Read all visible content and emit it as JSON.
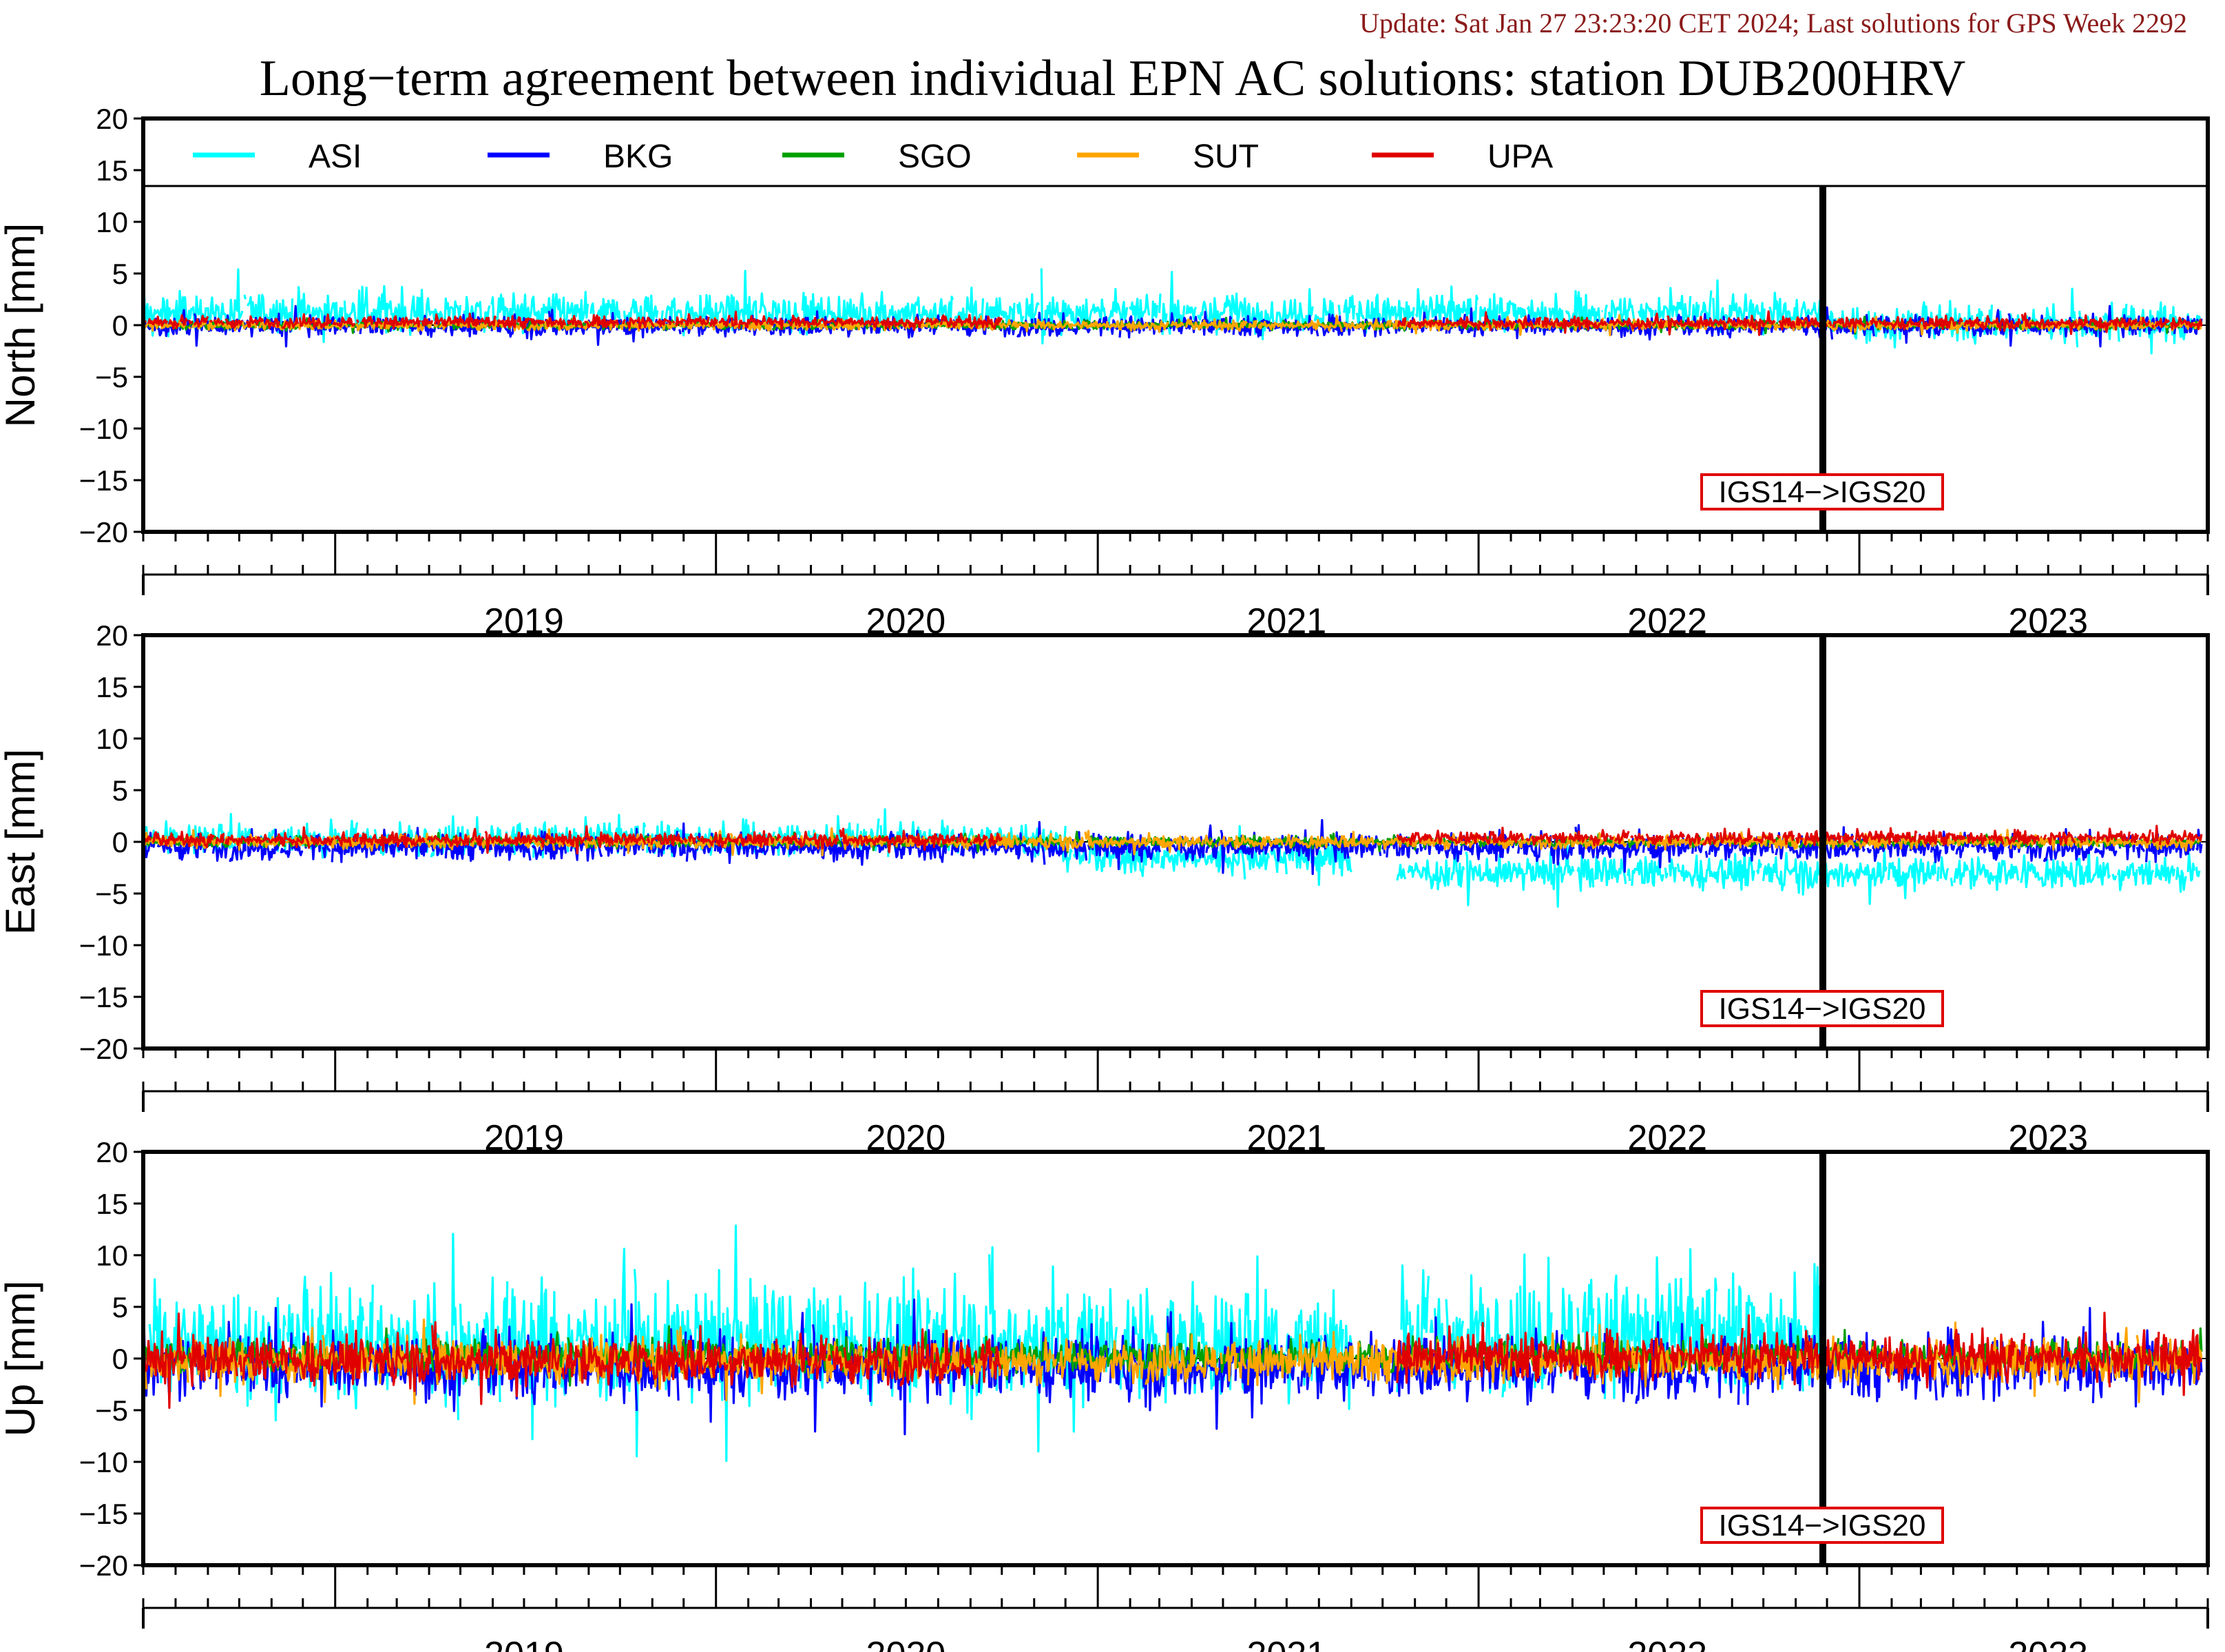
{
  "header": {
    "update_text": "Update: Sat Jan 27 23:23:20 CET 2024; Last solutions for GPS Week 2292",
    "title": "Long−term agreement between individual EPN AC solutions: station DUB200HRV"
  },
  "colors": {
    "update_text": "#8b1a1a",
    "axis": "#000000"
  },
  "chart_data": {
    "type": "line",
    "x_range": [
      "2018-07-01",
      "2023-12-01"
    ],
    "year_labels": [
      "2019",
      "2020",
      "2021",
      "2022",
      "2023"
    ],
    "yticks": [
      "20",
      "15",
      "10",
      "5",
      "0",
      "−5",
      "−10",
      "−15",
      "−20"
    ],
    "ylim": [
      -20,
      20
    ],
    "legend": [
      {
        "name": "ASI",
        "color": "#00ffff"
      },
      {
        "name": "BKG",
        "color": "#0000ff"
      },
      {
        "name": "SGO",
        "color": "#00a000"
      },
      {
        "name": "SUT",
        "color": "#ffa500"
      },
      {
        "name": "UPA",
        "color": "#e00000"
      }
    ],
    "event": {
      "date": "2022-11-27",
      "label": "IGS14−>IGS20",
      "label_color": "#e00000"
    },
    "panels": [
      {
        "ylabel": "North [mm]",
        "series": [
          {
            "name": "ASI",
            "segments": [
              [
                "2018-07-01",
                "2022-11-27",
                1.0
              ],
              [
                "2022-11-27",
                "2023-11-25",
                0.0
              ]
            ],
            "amp": 2.2,
            "pos_bias": 0.2
          },
          {
            "name": "BKG",
            "segments": [
              [
                "2018-07-01",
                "2023-11-25",
                -0.1
              ]
            ],
            "amp": 1.2,
            "pos_bias": 0.0
          },
          {
            "name": "SGO",
            "segments": [
              [
                "2018-07-01",
                "2023-11-25",
                0.0
              ]
            ],
            "amp": 0.5,
            "pos_bias": 0.0
          },
          {
            "name": "SUT",
            "segments": [
              [
                "2018-07-01",
                "2023-11-25",
                0.0
              ]
            ],
            "amp": 0.6,
            "pos_bias": 0.0
          },
          {
            "name": "UPA",
            "segments": [
              [
                "2018-07-01",
                "2020-10-01",
                0.3
              ],
              [
                "2021-10-15",
                "2023-11-25",
                0.2
              ]
            ],
            "amp": 0.7,
            "pos_bias": 0.0
          }
        ]
      },
      {
        "ylabel": "East [mm]",
        "series": [
          {
            "name": "ASI",
            "segments": [
              [
                "2018-07-01",
                "2020-12-01",
                0.3
              ],
              [
                "2020-12-01",
                "2021-09-01",
                -1.5
              ],
              [
                "2021-10-15",
                "2023-11-25",
                -3.0
              ]
            ],
            "amp": 2.0,
            "pos_bias": 0.0
          },
          {
            "name": "BKG",
            "segments": [
              [
                "2018-07-01",
                "2023-11-25",
                -0.5
              ]
            ],
            "amp": 1.6,
            "pos_bias": 0.0
          },
          {
            "name": "SGO",
            "segments": [
              [
                "2018-07-01",
                "2023-11-25",
                0.0
              ]
            ],
            "amp": 0.6,
            "pos_bias": 0.0
          },
          {
            "name": "SUT",
            "segments": [
              [
                "2018-07-01",
                "2023-11-25",
                0.0
              ]
            ],
            "amp": 0.8,
            "pos_bias": 0.0
          },
          {
            "name": "UPA",
            "segments": [
              [
                "2018-07-01",
                "2020-10-01",
                0.2
              ],
              [
                "2021-10-15",
                "2023-11-25",
                0.4
              ]
            ],
            "amp": 0.8,
            "pos_bias": 0.0
          }
        ]
      },
      {
        "ylabel": "Up [mm]",
        "series": [
          {
            "name": "ASI",
            "segments": [
              [
                "2018-07-01",
                "2021-09-01",
                1.5
              ],
              [
                "2021-10-15",
                "2022-11-27",
                2.5
              ]
            ],
            "amp": 7.0,
            "pos_bias": 0.0
          },
          {
            "name": "BKG",
            "segments": [
              [
                "2018-07-01",
                "2023-11-25",
                -0.8
              ]
            ],
            "amp": 4.0,
            "pos_bias": 0.0
          },
          {
            "name": "SGO",
            "segments": [
              [
                "2018-07-01",
                "2023-11-25",
                0.2
              ]
            ],
            "amp": 1.8,
            "pos_bias": 0.0
          },
          {
            "name": "SUT",
            "segments": [
              [
                "2018-07-01",
                "2023-11-25",
                -0.3
              ]
            ],
            "amp": 2.5,
            "pos_bias": 0.0
          },
          {
            "name": "UPA",
            "segments": [
              [
                "2018-07-01",
                "2020-10-01",
                -0.2
              ],
              [
                "2021-10-15",
                "2023-11-25",
                0.2
              ]
            ],
            "amp": 2.8,
            "pos_bias": 0.0
          }
        ]
      }
    ]
  }
}
